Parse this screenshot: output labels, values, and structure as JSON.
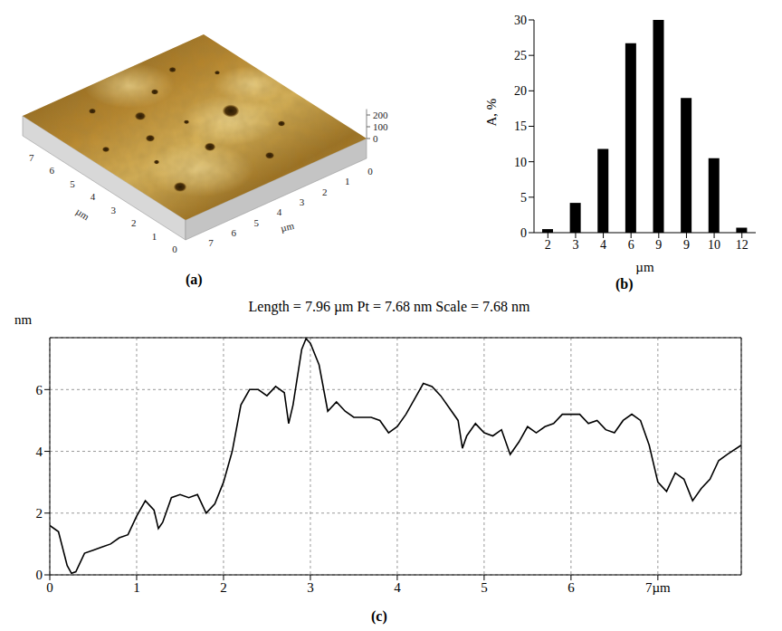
{
  "chart_data": [
    {
      "type": "surface",
      "panel_label": "(a)",
      "x_label": "µm",
      "y_label": "µm",
      "xlim": [
        0,
        7.96
      ],
      "xticks": [
        0,
        1,
        2,
        3,
        4,
        5,
        6,
        7
      ],
      "ylim": [
        0,
        7.96
      ],
      "yticks": [
        0,
        1,
        2,
        3,
        4,
        5,
        6,
        7
      ],
      "zlim": [
        0,
        250
      ],
      "zticks": [
        0,
        100,
        200
      ]
    },
    {
      "type": "bar",
      "panel_label": "(b)",
      "x_label": "µm",
      "y_label": "A, %",
      "categories": [
        "2",
        "3",
        "4",
        "6",
        "9",
        "9",
        "10",
        "12"
      ],
      "values": [
        0.5,
        4.2,
        11.8,
        26.7,
        30,
        19,
        10.5,
        0.7
      ],
      "color": "#000000",
      "ylim": [
        0,
        30
      ],
      "yticks": [
        0,
        5,
        10,
        15,
        20,
        25,
        30
      ]
    },
    {
      "type": "line",
      "panel_label": "(c)",
      "title": "Length = 7.96 µm Pt = 7.68 nm Scale = 7.68 nm",
      "y_label": "nm",
      "color": "#000000",
      "grid": true,
      "xlim": [
        0,
        7.96
      ],
      "xticks": [
        0,
        1,
        2,
        3,
        4,
        5,
        6,
        {
          "value": 7,
          "label": "7µm"
        }
      ],
      "ylim": [
        0,
        7.68
      ],
      "yticks": [
        0,
        2,
        4,
        6
      ],
      "x": [
        0,
        0.1,
        0.2,
        0.25,
        0.3,
        0.4,
        0.5,
        0.6,
        0.7,
        0.8,
        0.9,
        1.0,
        1.1,
        1.2,
        1.25,
        1.3,
        1.4,
        1.5,
        1.6,
        1.7,
        1.8,
        1.9,
        2.0,
        2.1,
        2.2,
        2.3,
        2.4,
        2.5,
        2.6,
        2.7,
        2.75,
        2.8,
        2.9,
        2.95,
        3.0,
        3.1,
        3.2,
        3.3,
        3.4,
        3.5,
        3.6,
        3.7,
        3.8,
        3.9,
        4.0,
        4.1,
        4.2,
        4.3,
        4.4,
        4.5,
        4.6,
        4.7,
        4.75,
        4.8,
        4.9,
        5.0,
        5.1,
        5.2,
        5.3,
        5.4,
        5.5,
        5.6,
        5.7,
        5.8,
        5.9,
        6.0,
        6.1,
        6.2,
        6.3,
        6.4,
        6.5,
        6.6,
        6.7,
        6.8,
        6.9,
        7.0,
        7.1,
        7.2,
        7.3,
        7.4,
        7.5,
        7.6,
        7.7,
        7.8,
        7.96
      ],
      "values": [
        1.6,
        1.4,
        0.3,
        0.05,
        0.1,
        0.7,
        0.8,
        0.9,
        1.0,
        1.2,
        1.3,
        1.9,
        2.4,
        2.1,
        1.5,
        1.7,
        2.5,
        2.6,
        2.5,
        2.6,
        2.0,
        2.3,
        3.0,
        4.0,
        5.5,
        6.0,
        6.0,
        5.8,
        6.1,
        5.9,
        4.9,
        5.5,
        7.3,
        7.65,
        7.5,
        6.8,
        5.3,
        5.6,
        5.3,
        5.1,
        5.1,
        5.1,
        5.0,
        4.6,
        4.8,
        5.2,
        5.7,
        6.2,
        6.1,
        5.8,
        5.4,
        5.0,
        4.1,
        4.5,
        4.9,
        4.6,
        4.5,
        4.7,
        3.9,
        4.3,
        4.8,
        4.6,
        4.8,
        4.9,
        5.2,
        5.2,
        5.2,
        4.9,
        5.0,
        4.7,
        4.6,
        5.0,
        5.2,
        5.0,
        4.2,
        3.0,
        2.7,
        3.3,
        3.1,
        2.4,
        2.8,
        3.1,
        3.7,
        3.9,
        4.2
      ]
    }
  ]
}
